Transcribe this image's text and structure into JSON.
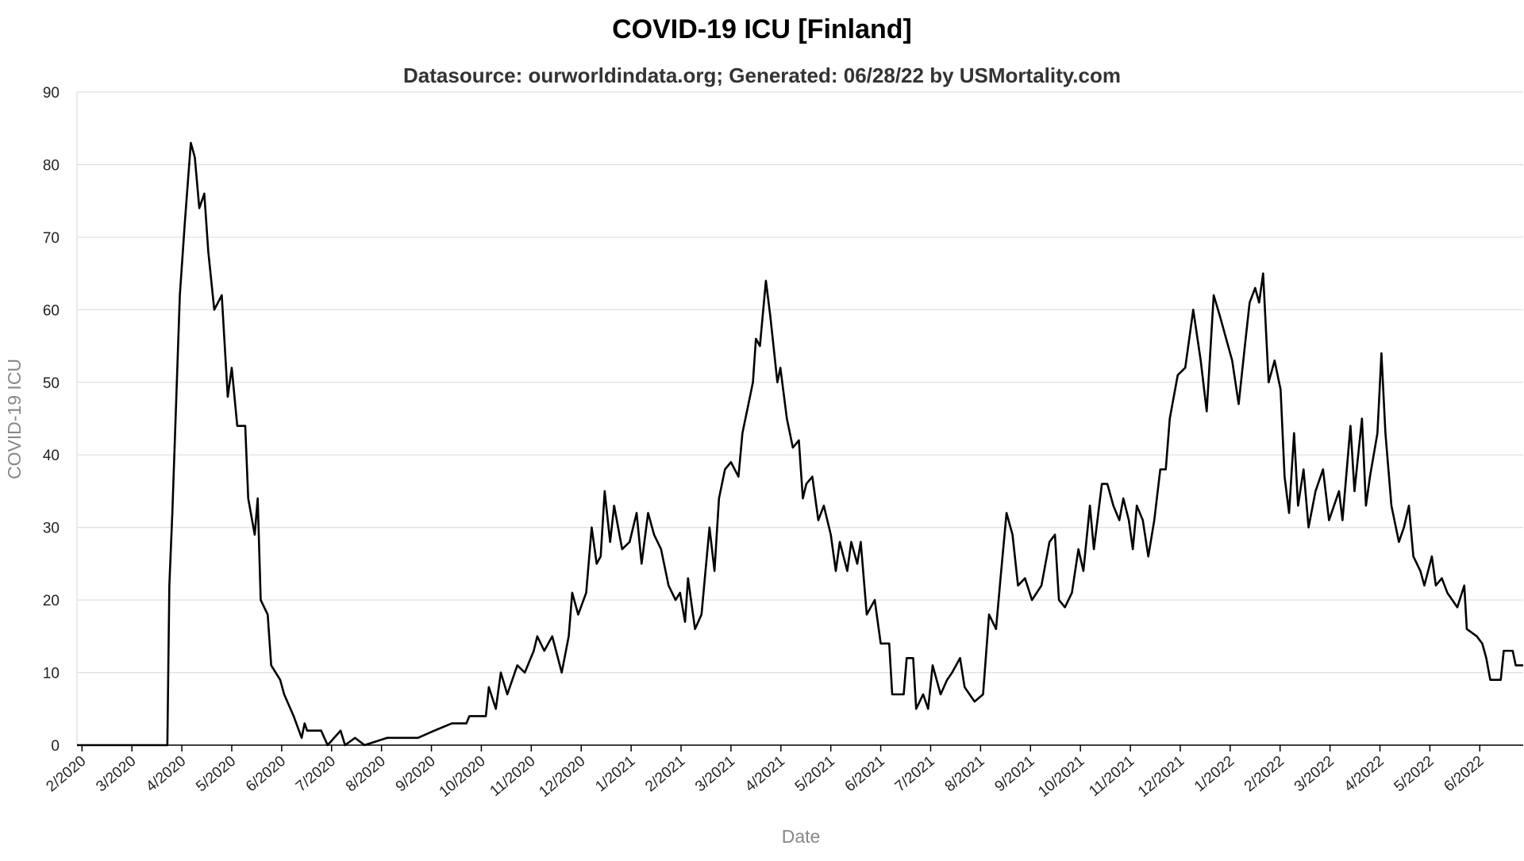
{
  "chart_data": {
    "type": "line",
    "title": "COVID-19 ICU [Finland]",
    "subtitle": "Datasource: ourworldindata.org; Generated: 06/28/22 by USMortality.com",
    "xlabel": "Date",
    "ylabel": "COVID-19 ICU",
    "color": "#000000",
    "grid": true,
    "xlim": [
      -0.1,
      28.87
    ],
    "ylim": [
      0,
      90
    ],
    "yticks": [
      0,
      10,
      20,
      30,
      40,
      50,
      60,
      70,
      80,
      90
    ],
    "xticks": [
      {
        "value": 0,
        "label": "2/2020"
      },
      {
        "value": 1,
        "label": "3/2020"
      },
      {
        "value": 2,
        "label": "4/2020"
      },
      {
        "value": 3,
        "label": "5/2020"
      },
      {
        "value": 4,
        "label": "6/2020"
      },
      {
        "value": 5,
        "label": "7/2020"
      },
      {
        "value": 6,
        "label": "8/2020"
      },
      {
        "value": 7,
        "label": "9/2020"
      },
      {
        "value": 8,
        "label": "10/2020"
      },
      {
        "value": 9,
        "label": "11/2020"
      },
      {
        "value": 10,
        "label": "12/2020"
      },
      {
        "value": 11,
        "label": "1/2021"
      },
      {
        "value": 12,
        "label": "2/2021"
      },
      {
        "value": 13,
        "label": "3/2021"
      },
      {
        "value": 14,
        "label": "4/2021"
      },
      {
        "value": 15,
        "label": "5/2021"
      },
      {
        "value": 16,
        "label": "6/2021"
      },
      {
        "value": 17,
        "label": "7/2021"
      },
      {
        "value": 18,
        "label": "8/2021"
      },
      {
        "value": 19,
        "label": "9/2021"
      },
      {
        "value": 20,
        "label": "10/2021"
      },
      {
        "value": 21,
        "label": "11/2021"
      },
      {
        "value": 22,
        "label": "12/2021"
      },
      {
        "value": 23,
        "label": "1/2022"
      },
      {
        "value": 24,
        "label": "2/2022"
      },
      {
        "value": 25,
        "label": "3/2022"
      },
      {
        "value": 26,
        "label": "4/2022"
      },
      {
        "value": 27,
        "label": "5/2022"
      },
      {
        "value": 28,
        "label": "6/2022"
      }
    ],
    "x": [
      -0.1,
      1.71,
      1.75,
      1.81,
      1.96,
      2.06,
      2.18,
      2.26,
      2.35,
      2.45,
      2.53,
      2.65,
      2.8,
      2.92,
      3.0,
      3.11,
      3.27,
      3.33,
      3.46,
      3.52,
      3.58,
      3.72,
      3.79,
      3.97,
      4.05,
      4.24,
      4.4,
      4.46,
      4.51,
      4.79,
      4.92,
      5.18,
      5.27,
      5.47,
      5.66,
      6.11,
      6.34,
      6.73,
      7.06,
      7.41,
      7.7,
      7.76,
      8.09,
      8.15,
      8.29,
      8.39,
      8.52,
      8.72,
      8.87,
      9.05,
      9.12,
      9.26,
      9.42,
      9.61,
      9.75,
      9.82,
      9.94,
      10.1,
      10.21,
      10.31,
      10.39,
      10.47,
      10.58,
      10.66,
      10.82,
      10.97,
      11.11,
      11.21,
      11.34,
      11.46,
      11.6,
      11.75,
      11.89,
      11.98,
      12.08,
      12.14,
      12.28,
      12.41,
      12.57,
      12.67,
      12.76,
      12.88,
      13.0,
      13.15,
      13.23,
      13.35,
      13.44,
      13.5,
      13.58,
      13.7,
      13.79,
      13.93,
      13.99,
      14.12,
      14.24,
      14.36,
      14.44,
      14.51,
      14.63,
      14.75,
      14.86,
      15.0,
      15.1,
      15.18,
      15.33,
      15.41,
      15.53,
      15.6,
      15.72,
      15.88,
      16.0,
      16.17,
      16.23,
      16.46,
      16.52,
      16.65,
      16.71,
      16.85,
      16.95,
      17.04,
      17.2,
      17.33,
      17.43,
      17.59,
      17.68,
      17.88,
      18.05,
      18.17,
      18.31,
      18.4,
      18.52,
      18.64,
      18.75,
      18.89,
      19.03,
      19.22,
      19.38,
      19.49,
      19.57,
      19.69,
      19.83,
      19.96,
      20.06,
      20.19,
      20.27,
      20.43,
      20.54,
      20.66,
      20.78,
      20.86,
      20.97,
      21.05,
      21.13,
      21.25,
      21.36,
      21.48,
      21.6,
      21.71,
      21.79,
      21.95,
      22.1,
      22.26,
      22.41,
      22.53,
      22.67,
      22.8,
      22.92,
      23.04,
      23.17,
      23.31,
      23.39,
      23.5,
      23.58,
      23.66,
      23.77,
      23.89,
      24.01,
      24.09,
      24.18,
      24.28,
      24.36,
      24.47,
      24.57,
      24.71,
      24.86,
      24.98,
      25.18,
      25.25,
      25.41,
      25.49,
      25.64,
      25.72,
      25.8,
      25.95,
      26.03,
      26.11,
      26.23,
      26.38,
      26.48,
      26.58,
      26.67,
      26.81,
      26.89,
      27.04,
      27.12,
      27.24,
      27.35,
      27.55,
      27.69,
      27.74,
      27.94,
      28.05,
      28.13,
      28.21,
      28.42,
      28.48,
      28.66,
      28.72,
      28.87
    ],
    "values": [
      0,
      0,
      22,
      32,
      62,
      72,
      83,
      81,
      74,
      76,
      68,
      60,
      62,
      48,
      52,
      44,
      44,
      34,
      29,
      34,
      20,
      18,
      11,
      9,
      7,
      4,
      1,
      3,
      2,
      2,
      0,
      2,
      0,
      1,
      0,
      1,
      1,
      1,
      2,
      3,
      3,
      4,
      4,
      8,
      5,
      10,
      7,
      11,
      10,
      13,
      15,
      13,
      15,
      10,
      15,
      21,
      18,
      21,
      30,
      25,
      26,
      35,
      28,
      33,
      27,
      28,
      32,
      25,
      32,
      29,
      27,
      22,
      20,
      21,
      17,
      23,
      16,
      18,
      30,
      24,
      34,
      38,
      39,
      37,
      43,
      47,
      50,
      56,
      55,
      64,
      59,
      50,
      52,
      45,
      41,
      42,
      34,
      36,
      37,
      31,
      33,
      29,
      24,
      28,
      24,
      28,
      25,
      28,
      18,
      20,
      14,
      14,
      7,
      7,
      12,
      12,
      5,
      7,
      5,
      11,
      7,
      9,
      10,
      12,
      8,
      6,
      7,
      18,
      16,
      23,
      32,
      29,
      22,
      23,
      20,
      22,
      28,
      29,
      20,
      19,
      21,
      27,
      24,
      33,
      27,
      36,
      36,
      33,
      31,
      34,
      31,
      27,
      33,
      31,
      26,
      31,
      38,
      38,
      45,
      51,
      52,
      60,
      53,
      46,
      62,
      59,
      56,
      53,
      47,
      56,
      61,
      63,
      61,
      65,
      50,
      53,
      49,
      37,
      32,
      43,
      33,
      38,
      30,
      35,
      38,
      31,
      35,
      31,
      44,
      35,
      45,
      33,
      37,
      43,
      54,
      43,
      33,
      28,
      30,
      33,
      26,
      24,
      22,
      26,
      22,
      23,
      21,
      19,
      22,
      16,
      15,
      14,
      12,
      9,
      9,
      13,
      13,
      11,
      11
    ]
  }
}
